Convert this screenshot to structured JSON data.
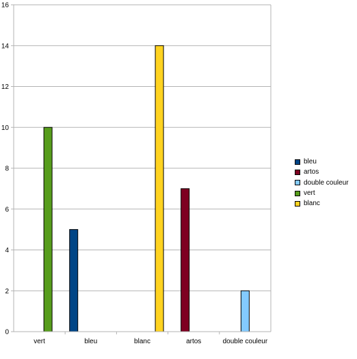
{
  "chart_data": {
    "type": "bar",
    "categories": [
      "vert",
      "bleu",
      "blanc",
      "artos",
      "double couleur"
    ],
    "series": [
      {
        "name": "bleu",
        "color": "#004586",
        "values": [
          0,
          5,
          0,
          0,
          0
        ]
      },
      {
        "name": "artos",
        "color": "#7e0021",
        "values": [
          0,
          0,
          0,
          7,
          0
        ]
      },
      {
        "name": "double couleur",
        "color": "#83caff",
        "values": [
          0,
          0,
          0,
          0,
          2
        ]
      },
      {
        "name": "vert",
        "color": "#579d1c",
        "values": [
          10,
          0,
          0,
          0,
          0
        ]
      },
      {
        "name": "blanc",
        "color": "#ffd320",
        "values": [
          0,
          0,
          14,
          0,
          0
        ]
      }
    ],
    "ylim": [
      0,
      16
    ],
    "yticks": [
      0,
      2,
      4,
      6,
      8,
      10,
      12,
      14,
      16
    ],
    "grid": true,
    "legend_position": "right"
  }
}
